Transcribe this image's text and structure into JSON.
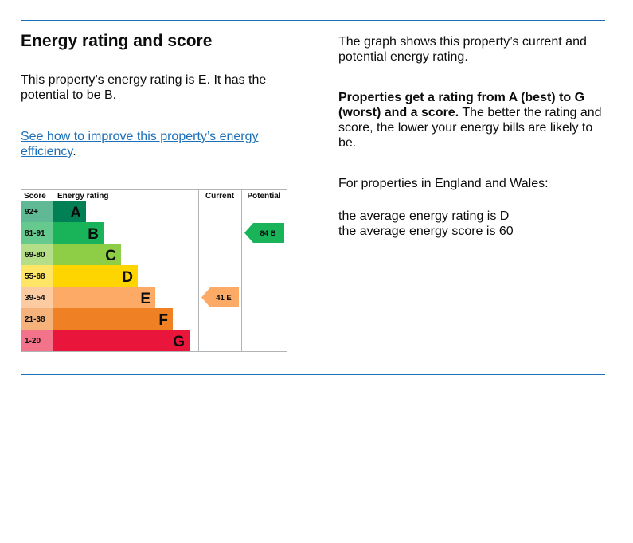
{
  "heading": "Energy rating and score",
  "rating_sentence": "This property’s energy rating is E. It has the potential to be B.",
  "improve_link": {
    "text": "See how to improve this property’s energy efficiency",
    "suffix": "."
  },
  "graph_intro": "The graph shows this property’s current and potential energy rating.",
  "rating_scale": {
    "bold": "Properties get a rating from A (best) to G (worst) and a score.",
    "rest": " The better the rating and score, the lower your energy bills are likely to be."
  },
  "region_note": "For properties in England and Wales:",
  "averages": {
    "rating_line": "the average energy rating is D",
    "score_line": "the average energy score is 60"
  },
  "chart_data": {
    "type": "table",
    "headers": {
      "score": "Score",
      "rating": "Energy rating",
      "current": "Current",
      "potential": "Potential"
    },
    "bands": [
      {
        "score": "92+",
        "letter": "A",
        "color": "#008054",
        "scoreColor": "#5fb994"
      },
      {
        "score": "81-91",
        "letter": "B",
        "color": "#19b459",
        "scoreColor": "#66c98e"
      },
      {
        "score": "69-80",
        "letter": "C",
        "color": "#8dce46",
        "scoreColor": "#b4de88"
      },
      {
        "score": "55-68",
        "letter": "D",
        "color": "#ffd500",
        "scoreColor": "#ffe566"
      },
      {
        "score": "39-54",
        "letter": "E",
        "color": "#fcaa65",
        "scoreColor": "#fdcba2"
      },
      {
        "score": "21-38",
        "letter": "F",
        "color": "#ef8023",
        "scoreColor": "#f5b27a"
      },
      {
        "score": "1-20",
        "letter": "G",
        "color": "#e9153b",
        "scoreColor": "#f2738a"
      }
    ],
    "current": {
      "score": 41,
      "letter": "E",
      "label": "41 E"
    },
    "potential": {
      "score": 84,
      "letter": "B",
      "label": "84 B"
    }
  }
}
